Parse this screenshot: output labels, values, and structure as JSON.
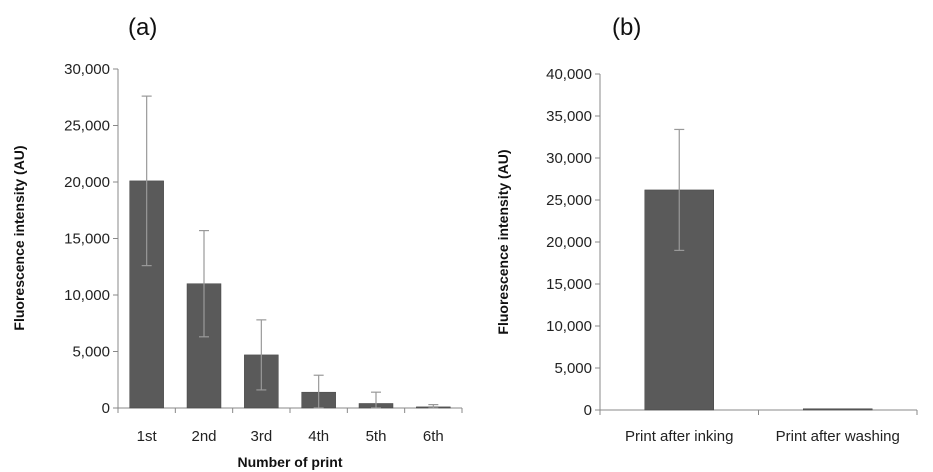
{
  "colors": {
    "bar": "#5a5a5a",
    "axis": "#888888",
    "error": "#999999"
  },
  "chart_data": [
    {
      "type": "bar",
      "panel_label": "(a)",
      "title": "",
      "xlabel": "Number of print",
      "ylabel": "Fluorescence intensity (AU)",
      "ylim": [
        0,
        30000
      ],
      "yticks": [
        0,
        5000,
        10000,
        15000,
        20000,
        25000,
        30000
      ],
      "ytick_labels": [
        "0",
        "5,000",
        "10,000",
        "15,000",
        "20,000",
        "25,000",
        "30,000"
      ],
      "categories": [
        "1st",
        "2nd",
        "3rd",
        "4th",
        "5th",
        "6th"
      ],
      "values": [
        20100,
        11000,
        4700,
        1400,
        400,
        100
      ],
      "errors": [
        7500,
        4700,
        3100,
        1500,
        1000,
        200
      ],
      "grid": false,
      "legend": "none"
    },
    {
      "type": "bar",
      "panel_label": "(b)",
      "title": "",
      "xlabel": "",
      "ylabel": "Fluorescence intensity (AU)",
      "ylim": [
        0,
        40000
      ],
      "yticks": [
        0,
        5000,
        10000,
        15000,
        20000,
        25000,
        30000,
        35000,
        40000
      ],
      "ytick_labels": [
        "0",
        "5,000",
        "10,000",
        "15,000",
        "20,000",
        "25,000",
        "30,000",
        "35,000",
        "40,000"
      ],
      "categories": [
        "Print after inking",
        "Print after washing"
      ],
      "values": [
        26200,
        150
      ],
      "errors": [
        7200,
        0
      ],
      "grid": false,
      "legend": "none"
    }
  ]
}
